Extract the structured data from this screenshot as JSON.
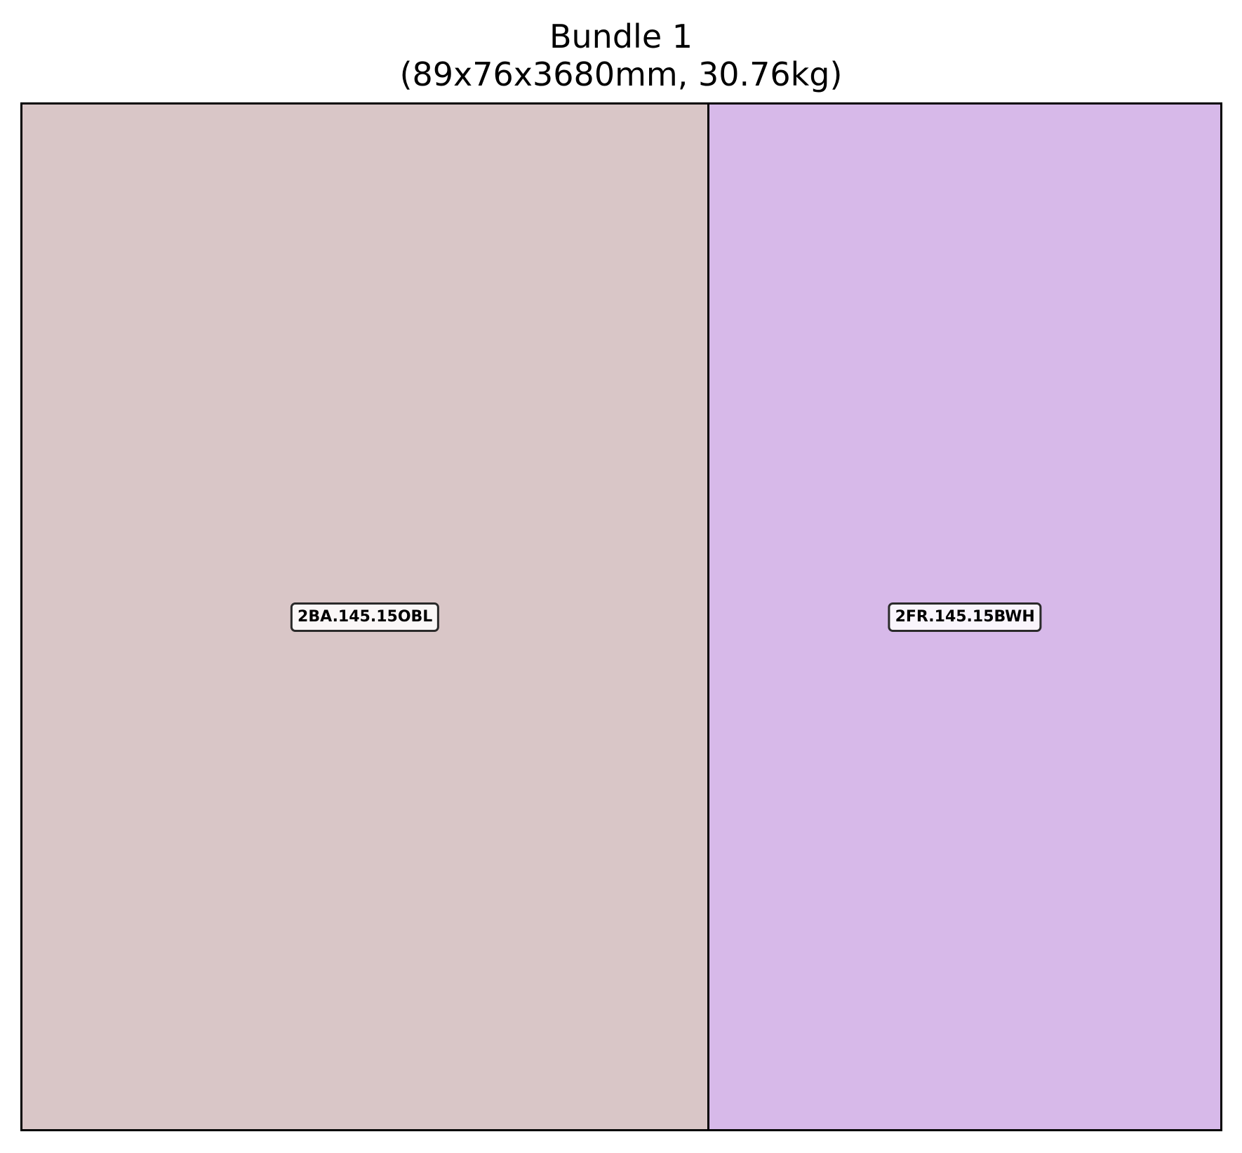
{
  "bundle": {
    "title": "Bundle 1",
    "subtitle": "(89x76x3680mm, 30.76kg)"
  },
  "pieces": [
    {
      "label": "2BA.145.15OBL",
      "color": "#d9c6c7",
      "share": 0.572
    },
    {
      "label": "2FR.145.15BWH",
      "color": "#d7b9e9",
      "share": 0.428
    }
  ]
}
